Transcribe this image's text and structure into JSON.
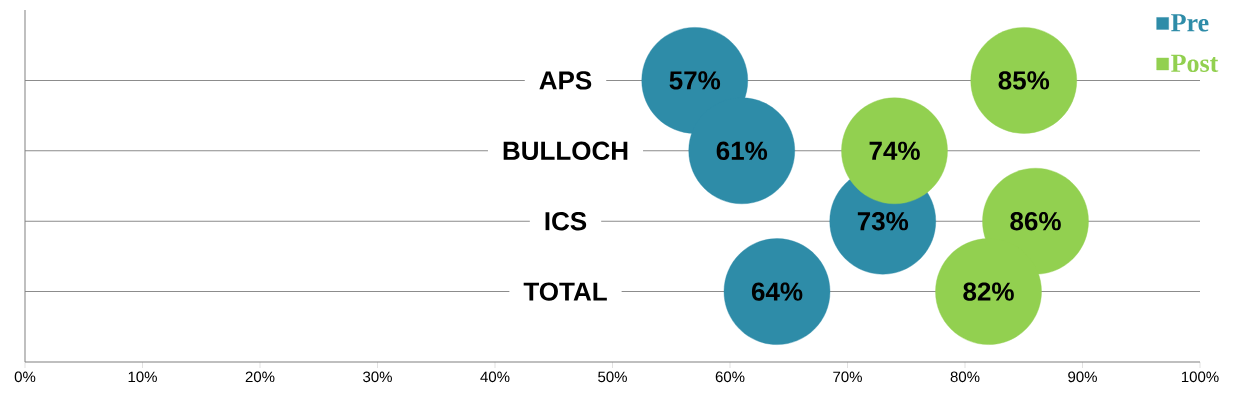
{
  "chart_data": {
    "type": "scatter",
    "orientation": "horizontal",
    "categories": [
      "APS",
      "BULLOCH",
      "ICS",
      "TOTAL"
    ],
    "series": [
      {
        "name": "Pre",
        "color": "#2e8ca8",
        "values": [
          57,
          61,
          73,
          64
        ],
        "value_labels": [
          "57%",
          "61%",
          "73%",
          "64%"
        ]
      },
      {
        "name": "Post",
        "color": "#92d050",
        "values": [
          85,
          74,
          86,
          82
        ],
        "value_labels": [
          "85%",
          "74%",
          "86%",
          "82%"
        ]
      }
    ],
    "xlim": [
      0,
      100
    ],
    "xticks": [
      {
        "value": 0,
        "label": "0%"
      },
      {
        "value": 10,
        "label": "10%"
      },
      {
        "value": 20,
        "label": "20%"
      },
      {
        "value": 30,
        "label": "30%"
      },
      {
        "value": 40,
        "label": "40%"
      },
      {
        "value": 50,
        "label": "50%"
      },
      {
        "value": 60,
        "label": "60%"
      },
      {
        "value": 70,
        "label": "70%"
      },
      {
        "value": 80,
        "label": "80%"
      },
      {
        "value": 90,
        "label": "90%"
      },
      {
        "value": 100,
        "label": "100%"
      }
    ],
    "grid": "y",
    "legend": "top right",
    "marker": "circle"
  }
}
